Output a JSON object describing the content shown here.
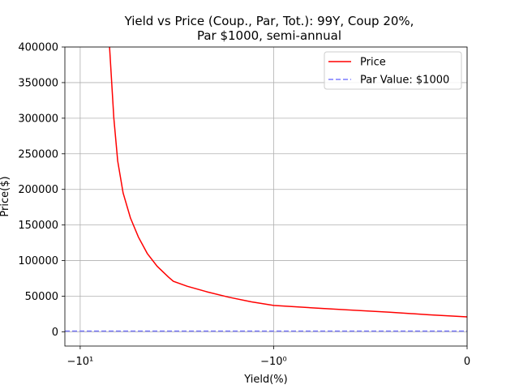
{
  "chart_data": {
    "type": "line",
    "title_line1": "Yield vs Price (Coup., Par, Tot.): 99Y, Coup 20%,",
    "title_line2": "Par $1000, semi-annual",
    "xlabel": "Yield(%)",
    "ylabel": "Price($)",
    "xscale": "symlog",
    "xlim": [
      -12,
      0
    ],
    "ylim": [
      -20000,
      400000
    ],
    "xticks": [
      {
        "value": -10,
        "label": "−10¹"
      },
      {
        "value": -1,
        "label": "−10⁰"
      },
      {
        "value": 0,
        "label": "0"
      }
    ],
    "yticks": [
      {
        "value": 0,
        "label": "0"
      },
      {
        "value": 50000,
        "label": "50000"
      },
      {
        "value": 100000,
        "label": "100000"
      },
      {
        "value": 150000,
        "label": "150000"
      },
      {
        "value": 200000,
        "label": "200000"
      },
      {
        "value": 250000,
        "label": "250000"
      },
      {
        "value": 300000,
        "label": "300000"
      },
      {
        "value": 350000,
        "label": "350000"
      },
      {
        "value": 400000,
        "label": "400000"
      }
    ],
    "grid": true,
    "legend_position": "top-right",
    "series": [
      {
        "name": "Price",
        "color": "#ff0000",
        "style": "solid",
        "points": [
          [
            -7.05,
            400000
          ],
          [
            -6.7,
            300000
          ],
          [
            -6.4,
            240000
          ],
          [
            -6.0,
            195000
          ],
          [
            -5.5,
            160000
          ],
          [
            -5.0,
            133000
          ],
          [
            -4.5,
            110000
          ],
          [
            -4.0,
            92000
          ],
          [
            -3.5,
            77000
          ],
          [
            -3.3,
            71000
          ],
          [
            -2.8,
            64000
          ],
          [
            -2.2,
            56000
          ],
          [
            -1.7,
            48500
          ],
          [
            -1.3,
            42000
          ],
          [
            -1.0,
            37000
          ],
          [
            -0.7,
            32000
          ],
          [
            -0.4,
            27500
          ],
          [
            -0.2,
            24000
          ],
          [
            0.0,
            21000
          ]
        ]
      },
      {
        "name": "Par Value: $1000",
        "color": "#7b7bff",
        "style": "dashed",
        "points": [
          [
            -12,
            1000
          ],
          [
            0,
            1000
          ]
        ]
      }
    ]
  }
}
